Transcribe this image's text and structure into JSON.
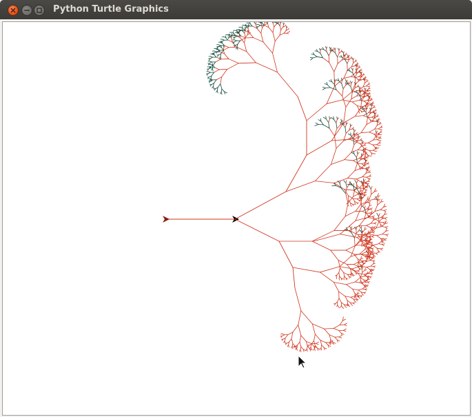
{
  "window": {
    "title": "Python Turtle Graphics"
  },
  "controls": {
    "close_icon": "close-icon",
    "minimize_icon": "minimize-icon",
    "maximize_icon": "maximize-icon"
  },
  "canvas": {
    "background": "#ffffff",
    "drawing": "fractal-tree",
    "branch_color": "#d0331c",
    "tip_color_dark": "#0f4a3a",
    "turtle_color": "#000000",
    "start_marker_color": "#8b1a0c"
  },
  "cursor": {
    "icon": "mouse-pointer-icon"
  }
}
